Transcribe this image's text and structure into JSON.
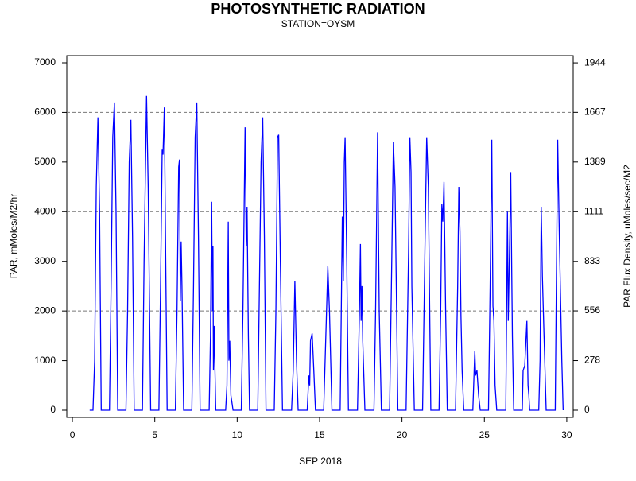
{
  "chart_data": {
    "type": "line",
    "title": "PHOTOSYNTHETIC RADIATION",
    "subtitle": "STATION=OYSM",
    "xlabel": "SEP 2018",
    "ylabel": "PAR, mMoles/M2/hr",
    "y2label": "PAR Flux Density, uMoles/sec/M2",
    "xlim": [
      -0.34,
      30.39
    ],
    "xticks": [
      0,
      5,
      10,
      15,
      20,
      25,
      30
    ],
    "ylim": [
      -144,
      7144
    ],
    "yticks": [
      0,
      1000,
      2000,
      3000,
      4000,
      5000,
      6000,
      7000
    ],
    "y2lim": [
      -40,
      1984.4
    ],
    "y2ticks": [
      0,
      278,
      556,
      833,
      1111,
      1389,
      1667,
      1944
    ],
    "grid_y": [
      2000,
      4000,
      6000
    ],
    "x": [
      1.05,
      1.25,
      1.35,
      1.45,
      1.55,
      1.65,
      1.75,
      2.25,
      2.35,
      2.45,
      2.55,
      2.65,
      2.75,
      3.25,
      3.35,
      3.45,
      3.55,
      3.65,
      3.75,
      4.25,
      4.35,
      4.5,
      4.6,
      4.75,
      5.25,
      5.35,
      5.45,
      5.5,
      5.58,
      5.65,
      5.75,
      6.25,
      6.35,
      6.45,
      6.5,
      6.55,
      6.6,
      6.65,
      6.75,
      7.25,
      7.35,
      7.45,
      7.55,
      7.65,
      7.75,
      8.3,
      8.38,
      8.45,
      8.5,
      8.53,
      8.56,
      8.6,
      8.7,
      9.3,
      9.38,
      9.42,
      9.46,
      9.5,
      9.55,
      9.62,
      9.75,
      10.25,
      10.35,
      10.48,
      10.55,
      10.6,
      10.68,
      10.75,
      11.25,
      11.35,
      11.45,
      11.55,
      11.65,
      11.75,
      12.25,
      12.35,
      12.45,
      12.52,
      12.62,
      12.75,
      13.3,
      13.4,
      13.5,
      13.6,
      13.7,
      14.25,
      14.35,
      14.4,
      14.45,
      14.55,
      14.65,
      14.75,
      15.25,
      15.38,
      15.5,
      15.6,
      15.75,
      16.25,
      16.38,
      16.44,
      16.5,
      16.55,
      16.65,
      16.75,
      17.3,
      17.42,
      17.48,
      17.52,
      17.57,
      17.62,
      17.75,
      18.3,
      18.4,
      18.52,
      18.62,
      18.75,
      19.25,
      19.38,
      19.48,
      19.58,
      19.75,
      20.25,
      20.4,
      20.48,
      20.55,
      20.6,
      20.75,
      21.25,
      21.4,
      21.5,
      21.6,
      21.75,
      22.25,
      22.35,
      22.42,
      22.48,
      22.55,
      22.65,
      22.75,
      23.25,
      23.38,
      23.45,
      23.52,
      23.58,
      23.65,
      23.75,
      24.3,
      24.38,
      24.42,
      24.47,
      24.55,
      24.65,
      24.75,
      25.25,
      25.35,
      25.45,
      25.52,
      25.58,
      25.65,
      25.75,
      26.3,
      26.4,
      26.45,
      26.55,
      26.6,
      26.7,
      26.78,
      27.3,
      27.35,
      27.45,
      27.58,
      27.65,
      27.7,
      27.75,
      28.3,
      28.38,
      28.45,
      28.52,
      28.62,
      28.75,
      29.3,
      29.38,
      29.45,
      29.55,
      29.7,
      29.78
    ],
    "series": [
      {
        "name": "PAR",
        "color": "#0000ff",
        "values": [
          0,
          0,
          1000,
          4500,
          5900,
          4000,
          0,
          0,
          2500,
          5500,
          6200,
          4000,
          0,
          0,
          2000,
          5000,
          5850,
          3500,
          0,
          0,
          3000,
          6330,
          4500,
          0,
          0,
          2500,
          5250,
          5150,
          6100,
          3500,
          0,
          0,
          2000,
          4900,
          5050,
          2200,
          3400,
          2500,
          0,
          0,
          2500,
          5500,
          6200,
          3500,
          0,
          0,
          1500,
          4200,
          2000,
          3300,
          800,
          1700,
          0,
          0,
          500,
          2000,
          3800,
          1000,
          1400,
          300,
          0,
          0,
          2000,
          5700,
          3300,
          4100,
          1500,
          0,
          0,
          2500,
          5000,
          5900,
          3500,
          0,
          0,
          2000,
          5500,
          5550,
          3000,
          0,
          0,
          800,
          2600,
          1000,
          0,
          0,
          700,
          500,
          1400,
          1550,
          800,
          0,
          0,
          1500,
          2900,
          2000,
          0,
          0,
          3900,
          2600,
          5000,
          5500,
          3000,
          0,
          0,
          2000,
          3350,
          1800,
          2500,
          1400,
          0,
          0,
          2000,
          5600,
          2000,
          0,
          0,
          3000,
          5400,
          4500,
          0,
          0,
          3200,
          5500,
          4800,
          2500,
          0,
          0,
          3400,
          5500,
          4500,
          0,
          0,
          2000,
          4150,
          3800,
          4600,
          2000,
          0,
          0,
          2500,
          4500,
          3600,
          1900,
          800,
          0,
          0,
          800,
          1200,
          700,
          800,
          300,
          0,
          0,
          2500,
          5450,
          2100,
          1800,
          500,
          0,
          0,
          4000,
          1800,
          3700,
          4800,
          1500,
          0,
          0,
          800,
          900,
          1800,
          500,
          300,
          0,
          0,
          1000,
          4100,
          2700,
          1500,
          0,
          0,
          3000,
          5450,
          3500,
          1000,
          0
        ]
      }
    ]
  }
}
